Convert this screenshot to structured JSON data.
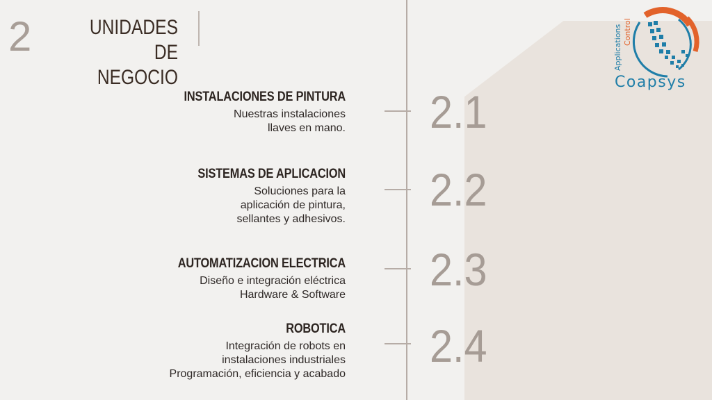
{
  "section": {
    "number": "2",
    "title_line1": "UNIDADES DE",
    "title_line2": "NEGOCIO"
  },
  "logo": {
    "brand": "Coapsys",
    "tagline_1": "Applications",
    "tagline_2": "Control"
  },
  "items": [
    {
      "number": "2.1",
      "title": "INSTALACIONES DE PINTURA",
      "desc": [
        "Nuestras instalaciones",
        "llaves en mano."
      ]
    },
    {
      "number": "2.2",
      "title": "SISTEMAS DE APLICACION",
      "desc": [
        "Soluciones para la",
        "aplicación de pintura,",
        "sellantes y adhesivos."
      ]
    },
    {
      "number": "2.3",
      "title": "AUTOMATIZACION ELECTRICA",
      "desc": [
        "Diseño e integración eléctrica",
        "Hardware & Software"
      ]
    },
    {
      "number": "2.4",
      "title": "ROBOTICA",
      "desc": [
        "Integración de robots en",
        "instalaciones industriales",
        "Programación, eficiencia y acabado"
      ]
    }
  ],
  "colors": {
    "accent_blue": "#1f7ea8",
    "accent_orange": "#e2622a",
    "number_gray": "#a69c95"
  }
}
